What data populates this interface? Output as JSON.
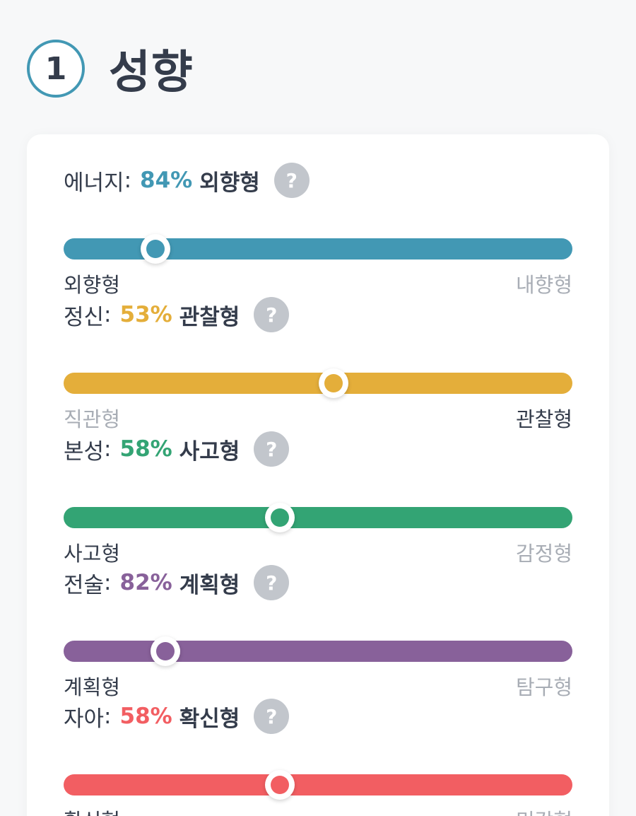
{
  "header": {
    "step_number": "1",
    "title": "성향"
  },
  "traits": [
    {
      "name": "에너지",
      "colon": ":",
      "percent_text": "84%",
      "result": "외향형",
      "left_pole": "외향형",
      "right_pole": "내향형",
      "active_side": "left",
      "knob_position": 0.18,
      "color": "#4298b4",
      "help_icon": "question-icon",
      "help_symbol": "?"
    },
    {
      "name": "정신",
      "colon": ":",
      "percent_text": "53%",
      "result": "관찰형",
      "left_pole": "직관형",
      "right_pole": "관찰형",
      "active_side": "right",
      "knob_position": 0.53,
      "color": "#e4ae3a",
      "help_icon": "question-icon",
      "help_symbol": "?"
    },
    {
      "name": "본성",
      "colon": ":",
      "percent_text": "58%",
      "result": "사고형",
      "left_pole": "사고형",
      "right_pole": "감정형",
      "active_side": "left",
      "knob_position": 0.425,
      "color": "#33a474",
      "help_icon": "question-icon",
      "help_symbol": "?"
    },
    {
      "name": "전술",
      "colon": ":",
      "percent_text": "82%",
      "result": "계획형",
      "left_pole": "계획형",
      "right_pole": "탐구형",
      "active_side": "left",
      "knob_position": 0.2,
      "color": "#88619a",
      "help_icon": "question-icon",
      "help_symbol": "?"
    },
    {
      "name": "자아",
      "colon": ":",
      "percent_text": "58%",
      "result": "확신형",
      "left_pole": "확신형",
      "right_pole": "민감형",
      "active_side": "left",
      "knob_position": 0.425,
      "color": "#f25e62",
      "help_icon": "question-icon",
      "help_symbol": "?"
    }
  ]
}
